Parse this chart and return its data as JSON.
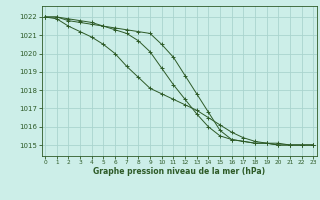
{
  "title": "Graphe pression niveau de la mer (hPa)",
  "background_color": "#cceee8",
  "grid_color": "#aad4ce",
  "line_color": "#2d5a27",
  "x_ticks": [
    0,
    1,
    2,
    3,
    4,
    5,
    6,
    7,
    8,
    9,
    10,
    11,
    12,
    13,
    14,
    15,
    16,
    17,
    18,
    19,
    20,
    21,
    22,
    23
  ],
  "y_ticks": [
    1015,
    1016,
    1017,
    1018,
    1019,
    1020,
    1021,
    1022
  ],
  "ylim": [
    1014.4,
    1022.6
  ],
  "xlim": [
    -0.3,
    23.3
  ],
  "series": [
    [
      1022.0,
      1022.0,
      1021.8,
      1021.7,
      1021.6,
      1021.5,
      1021.4,
      1021.3,
      1021.2,
      1021.1,
      1020.5,
      1019.8,
      1018.8,
      1017.8,
      1016.8,
      1015.8,
      1015.3,
      1015.2,
      1015.1,
      1015.1,
      1015.1,
      1015.0,
      1015.0,
      1015.0
    ],
    [
      1022.0,
      1022.0,
      1021.9,
      1021.8,
      1021.7,
      1021.5,
      1021.3,
      1021.1,
      1020.7,
      1020.1,
      1019.2,
      1018.3,
      1017.5,
      1016.7,
      1016.0,
      1015.5,
      1015.3,
      1015.2,
      1015.1,
      1015.1,
      1015.0,
      1015.0,
      1015.0,
      1015.0
    ],
    [
      1022.0,
      1021.9,
      1021.5,
      1021.2,
      1020.9,
      1020.5,
      1020.0,
      1019.3,
      1018.7,
      1018.1,
      1017.8,
      1017.5,
      1017.2,
      1016.9,
      1016.5,
      1016.1,
      1015.7,
      1015.4,
      1015.2,
      1015.1,
      1015.0,
      1015.0,
      1015.0,
      1015.0
    ]
  ]
}
